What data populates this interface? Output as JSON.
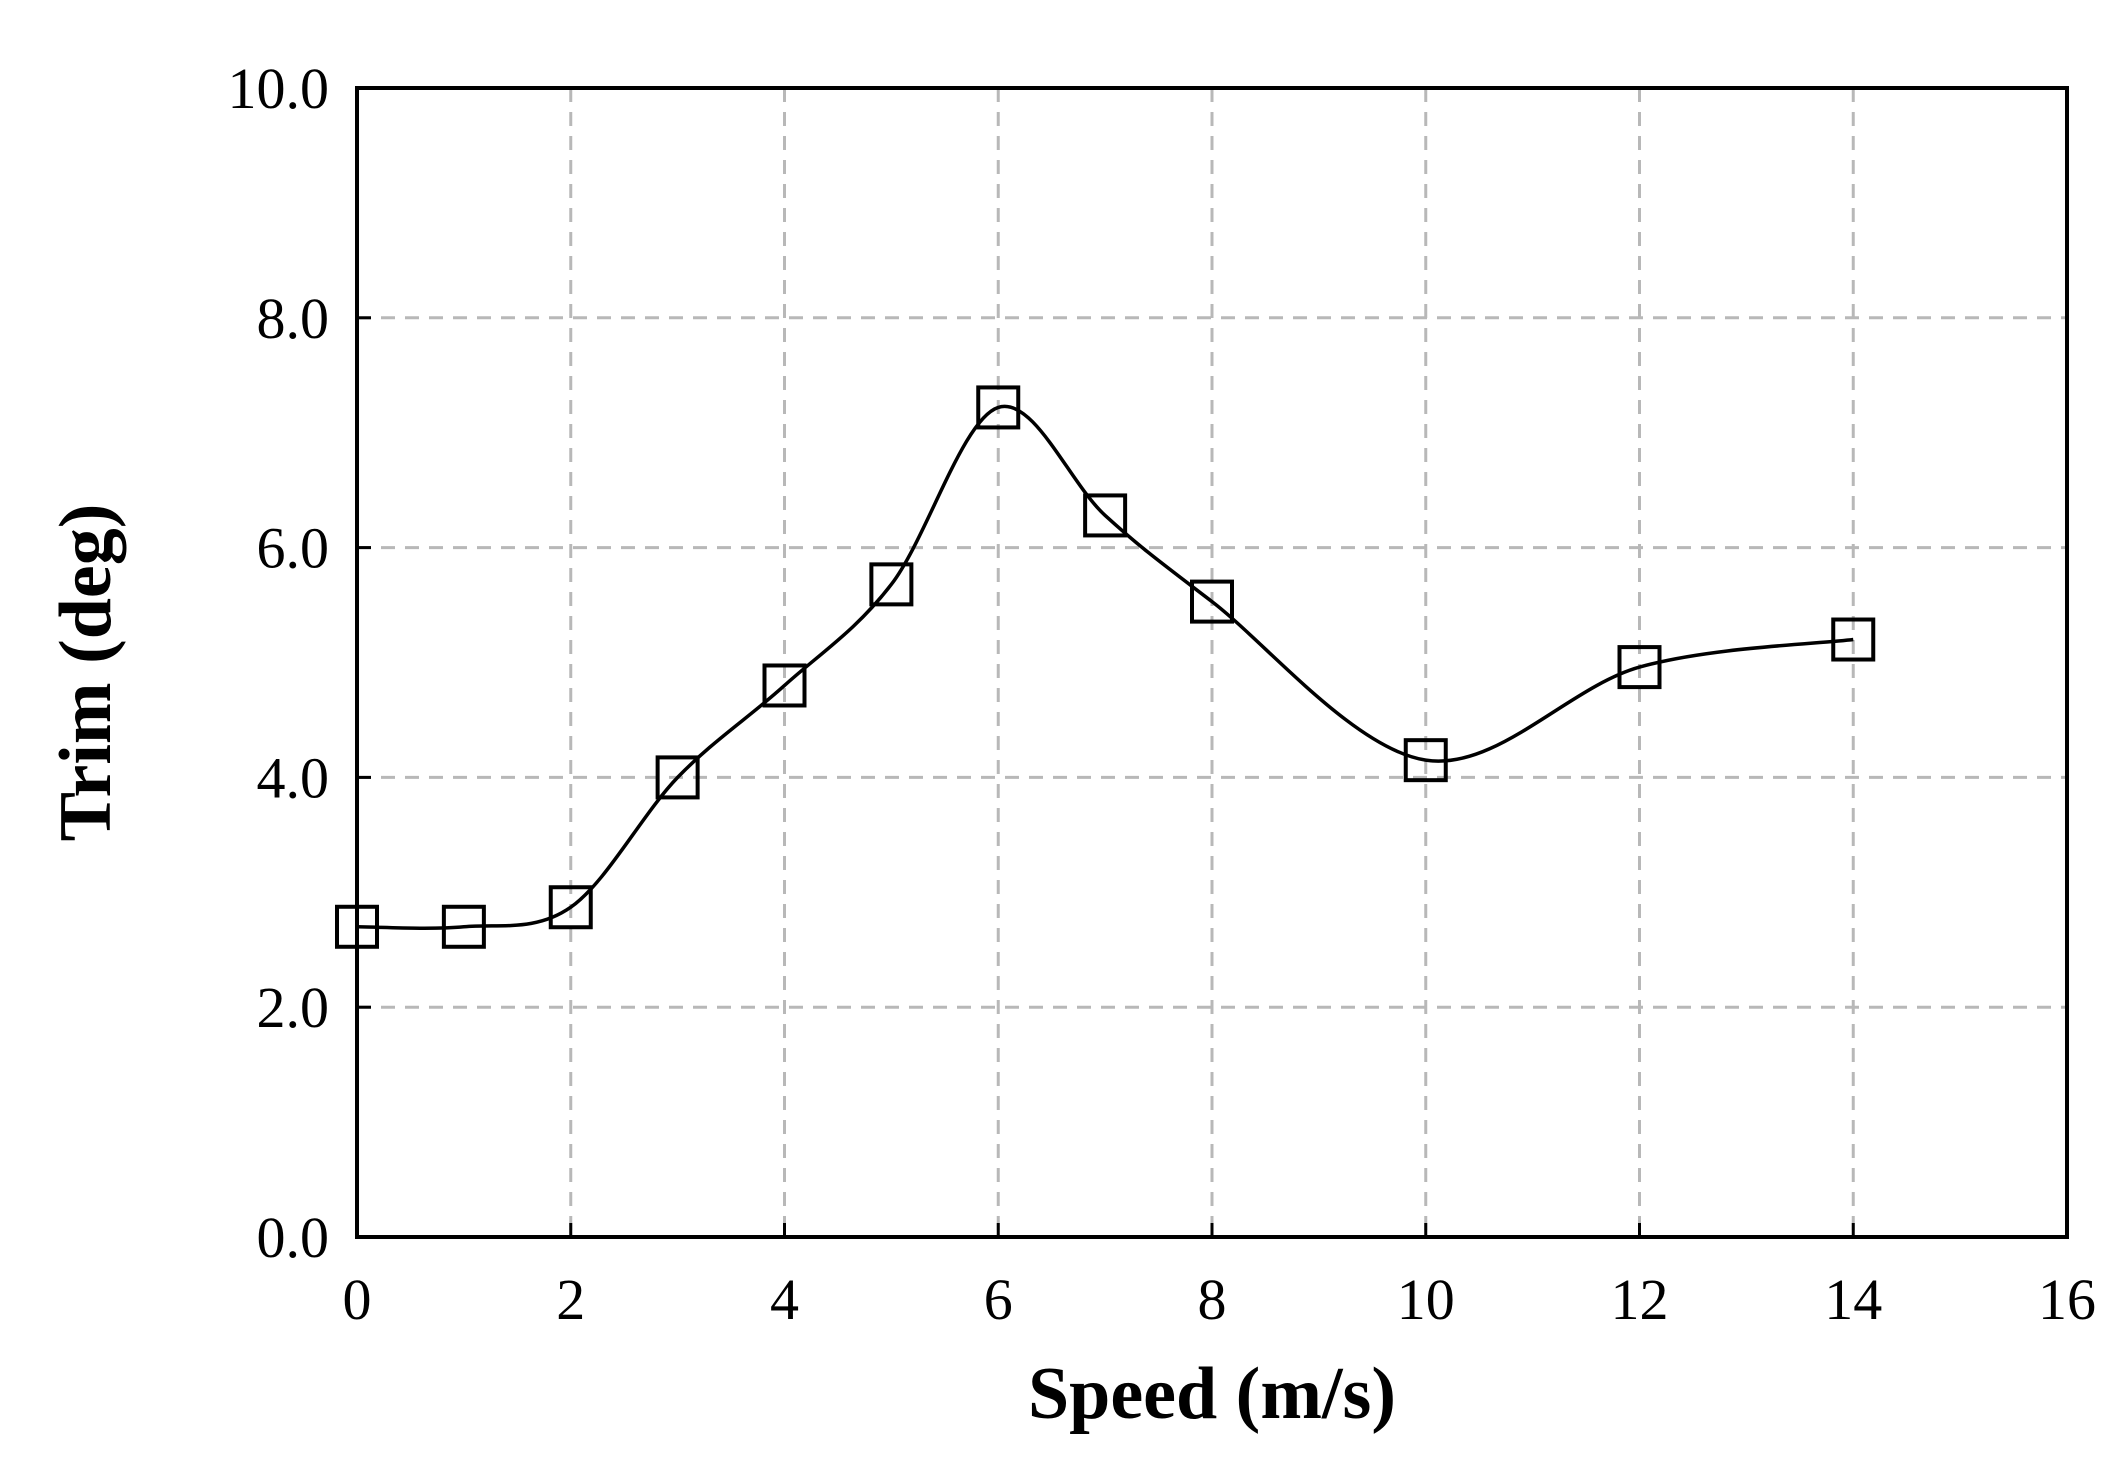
{
  "chart_data": {
    "type": "line",
    "xlabel": "Speed (m/s)",
    "ylabel": "Trim (deg)",
    "xlim": [
      0,
      16
    ],
    "ylim": [
      0,
      10
    ],
    "xticks": [
      0,
      2,
      4,
      6,
      8,
      10,
      12,
      14,
      16
    ],
    "yticks": [
      0,
      2,
      4,
      6,
      8,
      10
    ],
    "xtick_labels": [
      "0",
      "2",
      "4",
      "6",
      "8",
      "10",
      "12",
      "14",
      "16"
    ],
    "ytick_labels": [
      "0.0",
      "2.0",
      "4.0",
      "6.0",
      "8.0",
      "10.0"
    ],
    "grid": true,
    "grid_style": "dashed",
    "marker": "open-square",
    "line": "smooth",
    "series": [
      {
        "color": "#000000",
        "x": [
          0,
          1,
          2,
          3,
          4,
          5,
          6,
          7,
          8,
          10,
          12,
          14
        ],
        "y": [
          2.7,
          2.7,
          2.87,
          4.0,
          4.8,
          5.68,
          7.22,
          6.28,
          5.53,
          4.15,
          4.96,
          5.2
        ]
      }
    ]
  }
}
